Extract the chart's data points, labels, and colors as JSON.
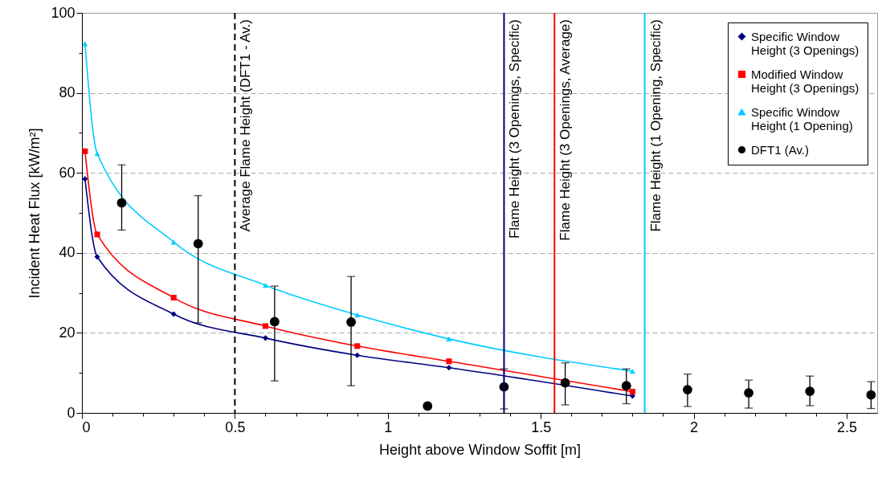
{
  "chart_data": {
    "type": "line",
    "xlabel": "Height above Window Soffit [m]",
    "ylabel": "Incident Heat Flux [kW/m²]",
    "xlim": [
      0,
      2.6
    ],
    "ylim": [
      0,
      100
    ],
    "xticks": [
      0,
      {
        "value": 0.1,
        "label": null
      },
      {
        "value": 0.2,
        "label": null
      },
      {
        "value": 0.3,
        "label": null
      },
      {
        "value": 0.4,
        "label": null
      },
      0.5,
      {
        "value": 0.6,
        "label": null
      },
      {
        "value": 0.7,
        "label": null
      },
      {
        "value": 0.8,
        "label": null
      },
      {
        "value": 0.9,
        "label": null
      },
      1,
      {
        "value": 1.1,
        "label": null
      },
      {
        "value": 1.2,
        "label": null
      },
      {
        "value": 1.3,
        "label": null
      },
      {
        "value": 1.4,
        "label": null
      },
      1.5,
      {
        "value": 1.6,
        "label": null
      },
      {
        "value": 1.7,
        "label": null
      },
      {
        "value": 1.8,
        "label": null
      },
      {
        "value": 1.9,
        "label": null
      },
      2,
      {
        "value": 2.1,
        "label": null
      },
      {
        "value": 2.2,
        "label": null
      },
      {
        "value": 2.3,
        "label": null
      },
      {
        "value": 2.4,
        "label": null
      },
      2.5
    ],
    "yticks": [
      0,
      {
        "value": 10,
        "label": null
      },
      20,
      {
        "value": 30,
        "label": null
      },
      40,
      {
        "value": 50,
        "label": null
      },
      60,
      {
        "value": 70,
        "label": null
      },
      80,
      {
        "value": 90,
        "label": null
      },
      100
    ],
    "grid": "y",
    "legend": "top right",
    "line_style": "solid",
    "series": [
      {
        "name": "Specific Window Height (3 Openings)",
        "color": "#000080",
        "marker": "diamond",
        "x": [
          0.01,
          0.05,
          0.3,
          0.6,
          0.9,
          1.2,
          1.8
        ],
        "values": [
          58.5,
          39,
          24.7,
          18.7,
          14.4,
          11.3,
          4.2
        ]
      },
      {
        "name": "Modified Window Height (3 Openings)",
        "color": "#ff0000",
        "marker": "square",
        "x": [
          0.01,
          0.05,
          0.3,
          0.6,
          0.9,
          1.2,
          1.8
        ],
        "values": [
          65.4,
          44.6,
          28.8,
          21.7,
          16.7,
          12.9,
          5.3
        ]
      },
      {
        "name": "Specific Window Height (1 Opening)",
        "color": "#00ccff",
        "marker": "triangle",
        "x": [
          0.01,
          0.05,
          0.3,
          0.6,
          0.9,
          1.2,
          1.8
        ],
        "values": [
          92.3,
          64.8,
          42.7,
          31.9,
          24.5,
          18.5,
          10.4
        ]
      },
      {
        "name": "DFT1 (Av.)",
        "type": "scatter",
        "color": "#000000",
        "marker": "circle",
        "x": [
          0.13,
          0.38,
          0.63,
          0.88,
          1.13,
          1.38,
          1.58,
          1.78,
          1.98,
          2.18,
          2.38,
          2.58
        ],
        "values": [
          52.5,
          42.3,
          22.8,
          22.7,
          1.7,
          6.5,
          7.5,
          6.8,
          5.8,
          5,
          5.4,
          4.5
        ],
        "errors": [
          [
            45.7,
            62
          ],
          [
            22.5,
            54.3
          ],
          [
            8,
            31.7
          ],
          [
            6.8,
            34.1
          ],
          null,
          [
            1,
            11
          ],
          [
            2,
            12.5
          ],
          [
            2.3,
            11
          ],
          [
            1.6,
            9.7
          ],
          [
            1.2,
            8.2
          ],
          [
            1.8,
            9.2
          ],
          [
            1.1,
            7.8
          ]
        ]
      }
    ],
    "ref_lines": [
      {
        "axis": "x",
        "value": 0.5,
        "label": "Average Flame Height (DFT1 - Av.)",
        "color": "#000000",
        "line_style": "dashed"
      },
      {
        "axis": "x",
        "value": 1.38,
        "label": "Flame Height (3 Openings, Specific)",
        "color": "#000080",
        "line_style": "solid"
      },
      {
        "axis": "x",
        "value": 1.545,
        "label": "Flame Height (3 Openings, Average)",
        "color": "#ff0000",
        "line_style": "solid"
      },
      {
        "axis": "x",
        "value": 1.84,
        "label": "Flame Height (1 Opening, Specific)",
        "color": "#00ccff",
        "line_style": "solid"
      }
    ]
  }
}
